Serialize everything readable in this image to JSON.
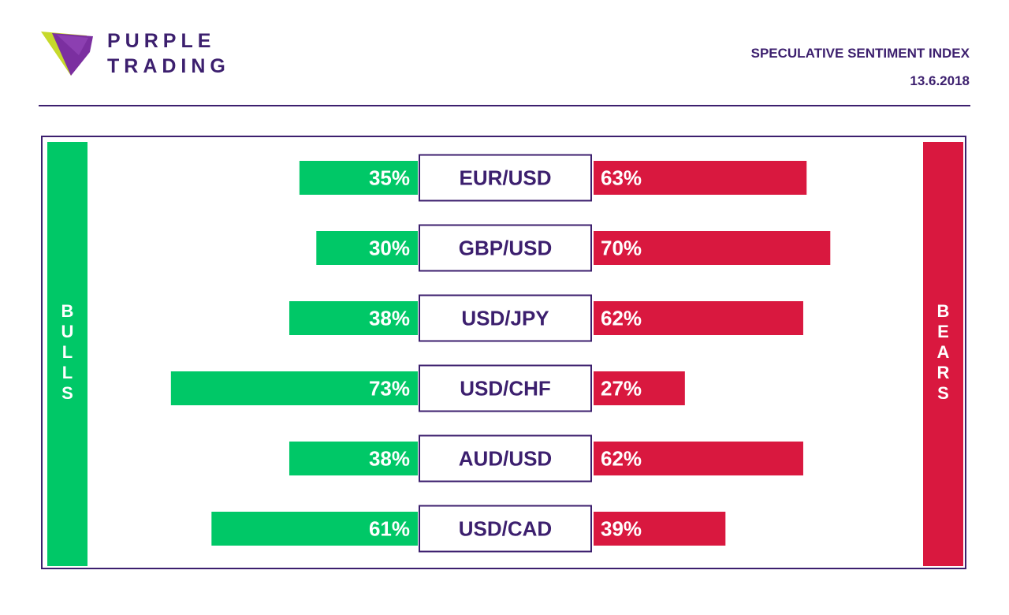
{
  "header": {
    "brand_line1": "PURPLE",
    "brand_line2": "TRADING",
    "report_title": "SPECULATIVE SENTIMENT INDEX",
    "report_date": "13.6.2018"
  },
  "colors": {
    "purple": "#3c1f6e",
    "bulls_green": "#00c867",
    "bears_red": "#d9183f",
    "logo_lime": "#c6d92b",
    "logo_violet": "#7b2fa0"
  },
  "side_labels": {
    "bulls": "B\nU\nL\nL\nS",
    "bears": "B\nE\nA\nR\nS"
  },
  "chart_data": {
    "type": "bar",
    "categories": [
      "EUR/USD",
      "GBP/USD",
      "USD/JPY",
      "USD/CHF",
      "AUD/USD",
      "USD/CAD"
    ],
    "series": [
      {
        "name": "BULLS",
        "values": [
          35,
          30,
          38,
          73,
          38,
          61
        ]
      },
      {
        "name": "BEARS",
        "values": [
          63,
          70,
          62,
          27,
          62,
          39
        ]
      }
    ],
    "value_labels": {
      "bulls": [
        "35%",
        "30%",
        "38%",
        "73%",
        "38%",
        "61%"
      ],
      "bears": [
        "63%",
        "70%",
        "62%",
        "27%",
        "62%",
        "39%"
      ]
    },
    "layout": "diverging horizontal bars",
    "legend": "side bars (BULLS left, BEARS right)",
    "grid": false
  }
}
